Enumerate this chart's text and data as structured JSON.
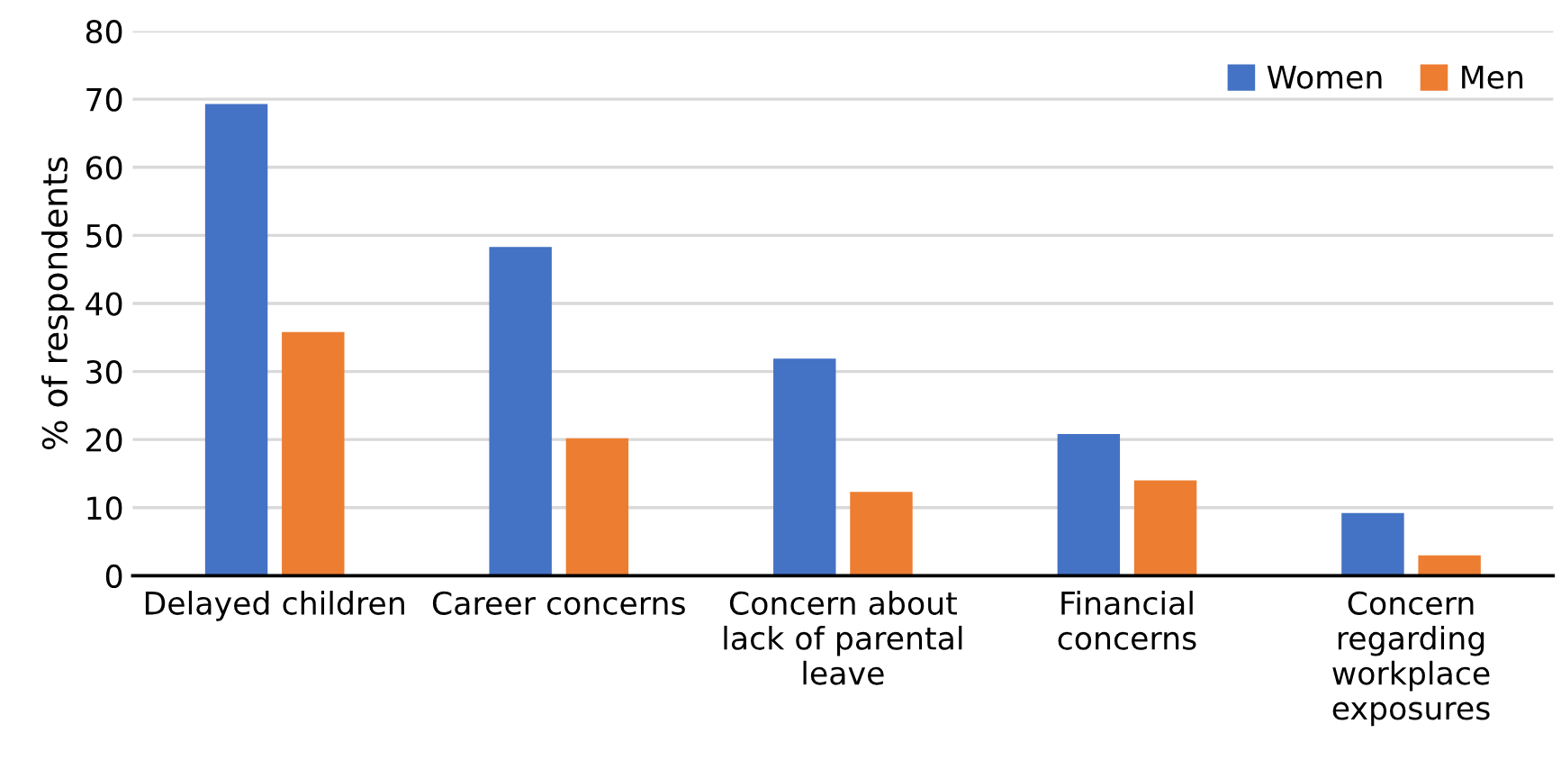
{
  "chart_data": {
    "type": "bar",
    "ylabel": "% of respondents",
    "categories": [
      "Delayed children",
      "Career concerns",
      "Concern about lack of parental leave",
      "Financial concerns",
      "Concern regarding workplace exposures"
    ],
    "series": [
      {
        "name": "Women",
        "color": "#4472c4",
        "values": [
          69.3,
          48.3,
          31.9,
          20.8,
          9.2
        ]
      },
      {
        "name": "Men",
        "color": "#ed7d31",
        "values": [
          35.8,
          20.2,
          12.3,
          14.0,
          3.0
        ]
      }
    ],
    "ylim": [
      0,
      80
    ],
    "yticks": [
      0,
      10,
      20,
      30,
      40,
      50,
      60,
      70,
      80
    ],
    "grid": "y",
    "legend": "top right"
  }
}
